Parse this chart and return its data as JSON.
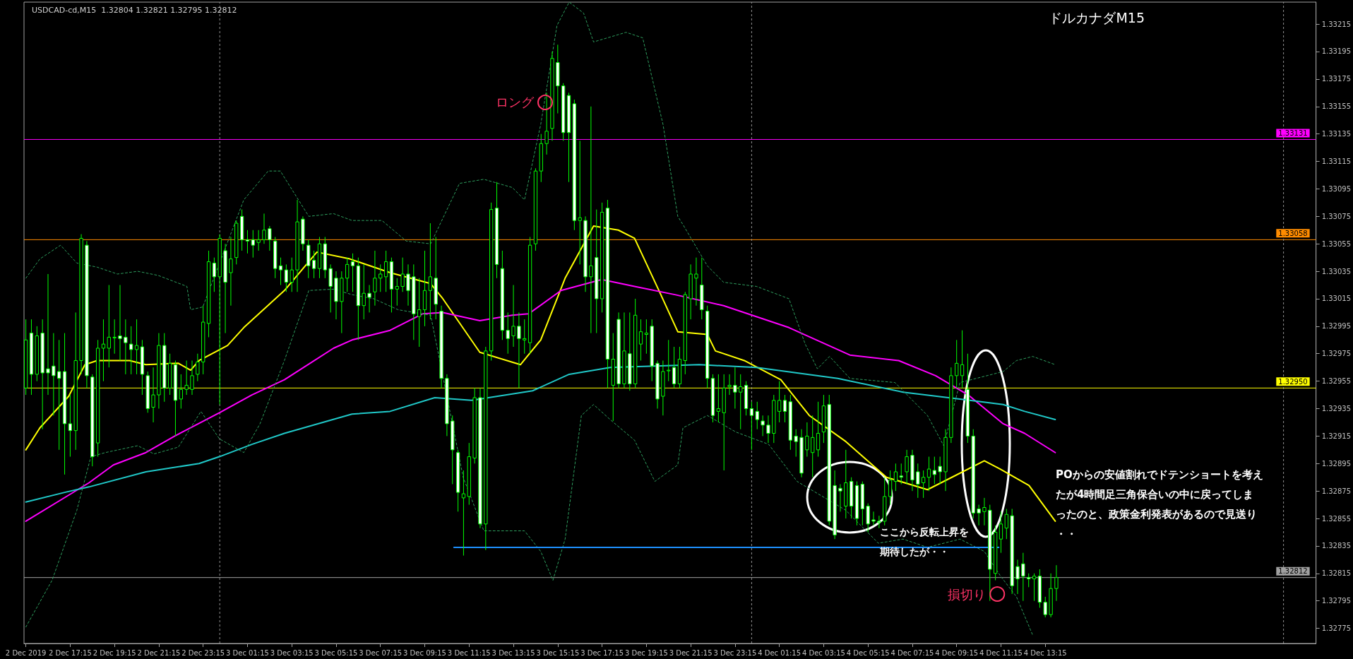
{
  "chart_data": {
    "type": "candlestick",
    "title": "ドルカナダM15",
    "subtitle": "USDCAD-cd,M15  1.32804 1.32821 1.32795 1.32812",
    "color": "#00ff00",
    "x": [
      "2019-12-02T15:15",
      "2019-12-02T15:30",
      "2019-12-02T15:45",
      "2019-12-02T16:00",
      "2019-12-02T16:15",
      "2019-12-02T16:30",
      "2019-12-02T16:45",
      "2019-12-02T17:00",
      "2019-12-02T17:15",
      "2019-12-02T17:30",
      "2019-12-02T17:45",
      "2019-12-02T18:00",
      "2019-12-02T18:15",
      "2019-12-02T18:30",
      "2019-12-02T18:45",
      "2019-12-02T19:00",
      "2019-12-02T19:15",
      "2019-12-02T19:30",
      "2019-12-02T19:45",
      "2019-12-02T20:00",
      "2019-12-02T20:15",
      "2019-12-02T20:30",
      "2019-12-02T20:45",
      "2019-12-02T21:00",
      "2019-12-02T21:15",
      "2019-12-02T21:30",
      "2019-12-02T21:45",
      "2019-12-02T22:00",
      "2019-12-02T22:15",
      "2019-12-02T22:30",
      "2019-12-02T22:45",
      "2019-12-02T23:00",
      "2019-12-02T23:15",
      "2019-12-02T23:30",
      "2019-12-02T23:45",
      "2019-12-03T00:00",
      "2019-12-03T00:15",
      "2019-12-03T00:30",
      "2019-12-03T00:45",
      "2019-12-03T01:00",
      "2019-12-03T01:15",
      "2019-12-03T01:30",
      "2019-12-03T01:45",
      "2019-12-03T02:00",
      "2019-12-03T02:15",
      "2019-12-03T02:30",
      "2019-12-03T02:45",
      "2019-12-03T03:00",
      "2019-12-03T03:15",
      "2019-12-03T03:30",
      "2019-12-03T03:45",
      "2019-12-03T04:00",
      "2019-12-03T04:15",
      "2019-12-03T04:30",
      "2019-12-03T04:45",
      "2019-12-03T05:00",
      "2019-12-03T05:15",
      "2019-12-03T05:30",
      "2019-12-03T05:45",
      "2019-12-03T06:00",
      "2019-12-03T06:15",
      "2019-12-03T06:30",
      "2019-12-03T06:45",
      "2019-12-03T07:00",
      "2019-12-03T07:15",
      "2019-12-03T07:30",
      "2019-12-03T07:45",
      "2019-12-03T08:00",
      "2019-12-03T08:15",
      "2019-12-03T08:30",
      "2019-12-03T08:45",
      "2019-12-03T09:00",
      "2019-12-03T09:15",
      "2019-12-03T09:30",
      "2019-12-03T09:45",
      "2019-12-03T10:00",
      "2019-12-03T10:15",
      "2019-12-03T10:30",
      "2019-12-03T10:45",
      "2019-12-03T11:00",
      "2019-12-03T11:15",
      "2019-12-03T11:30",
      "2019-12-03T11:45",
      "2019-12-03T12:00",
      "2019-12-03T12:15",
      "2019-12-03T12:30",
      "2019-12-03T12:45",
      "2019-12-03T13:00",
      "2019-12-03T13:15",
      "2019-12-03T13:30",
      "2019-12-03T13:45",
      "2019-12-03T14:00",
      "2019-12-03T14:15",
      "2019-12-03T14:30",
      "2019-12-03T14:45",
      "2019-12-03T15:00",
      "2019-12-03T15:15",
      "2019-12-03T15:30",
      "2019-12-03T15:45",
      "2019-12-03T16:00",
      "2019-12-03T16:15",
      "2019-12-03T16:30",
      "2019-12-03T16:45",
      "2019-12-03T17:00",
      "2019-12-03T17:15",
      "2019-12-03T17:30",
      "2019-12-03T17:45",
      "2019-12-03T18:00",
      "2019-12-03T18:15",
      "2019-12-03T18:30",
      "2019-12-03T18:45",
      "2019-12-03T19:00",
      "2019-12-03T19:15",
      "2019-12-03T19:30",
      "2019-12-03T19:45",
      "2019-12-03T20:00",
      "2019-12-03T20:15",
      "2019-12-03T20:30",
      "2019-12-03T20:45",
      "2019-12-03T21:00",
      "2019-12-03T21:15",
      "2019-12-03T21:30",
      "2019-12-03T21:45",
      "2019-12-03T22:00",
      "2019-12-03T22:15",
      "2019-12-03T22:30",
      "2019-12-03T22:45",
      "2019-12-03T23:00",
      "2019-12-03T23:15",
      "2019-12-03T23:30",
      "2019-12-03T23:45",
      "2019-12-04T00:00",
      "2019-12-04T00:15",
      "2019-12-04T00:30",
      "2019-12-04T00:45",
      "2019-12-04T01:00",
      "2019-12-04T01:15",
      "2019-12-04T01:30",
      "2019-12-04T01:45",
      "2019-12-04T02:00",
      "2019-12-04T02:15",
      "2019-12-04T02:30",
      "2019-12-04T02:45",
      "2019-12-04T03:00",
      "2019-12-04T03:15",
      "2019-12-04T03:30",
      "2019-12-04T03:45",
      "2019-12-04T04:00",
      "2019-12-04T04:15",
      "2019-12-04T04:30",
      "2019-12-04T04:45",
      "2019-12-04T05:00",
      "2019-12-04T05:15",
      "2019-12-04T05:30",
      "2019-12-04T05:45",
      "2019-12-04T06:00",
      "2019-12-04T06:15",
      "2019-12-04T06:30",
      "2019-12-04T06:45",
      "2019-12-04T07:00",
      "2019-12-04T07:15",
      "2019-12-04T07:30",
      "2019-12-04T07:45",
      "2019-12-04T08:00",
      "2019-12-04T08:15",
      "2019-12-04T08:30",
      "2019-12-04T08:45",
      "2019-12-04T09:00",
      "2019-12-04T09:15",
      "2019-12-04T09:30",
      "2019-12-04T09:45",
      "2019-12-04T10:00",
      "2019-12-04T10:15",
      "2019-12-04T10:30",
      "2019-12-04T10:45",
      "2019-12-04T11:00",
      "2019-12-04T11:15",
      "2019-12-04T11:30",
      "2019-12-04T11:45",
      "2019-12-04T12:00",
      "2019-12-04T12:15",
      "2019-12-04T12:30",
      "2019-12-04T12:45",
      "2019-12-04T13:00",
      "2019-12-04T13:15",
      "2019-12-04T13:30",
      "2019-12-04T13:45"
    ],
    "ohlc": [
      [
        1.3295,
        1.33,
        1.32945,
        1.32985
      ],
      [
        1.3299,
        1.33,
        1.32945,
        1.3296
      ],
      [
        1.3296,
        1.32995,
        1.32955,
        1.32988
      ],
      [
        1.3299,
        1.33,
        1.3292,
        1.32961
      ],
      [
        1.32964,
        1.33033,
        1.32945,
        1.32961
      ],
      [
        1.32966,
        1.3299,
        1.3293,
        1.32959
      ],
      [
        1.32962,
        1.32985,
        1.32905,
        1.32957
      ],
      [
        1.32962,
        1.3299,
        1.32887,
        1.32924
      ],
      [
        1.32924,
        1.32945,
        1.329,
        1.32919
      ],
      [
        1.32919,
        1.33005,
        1.32905,
        1.3297
      ],
      [
        1.3297,
        1.33062,
        1.3296,
        1.33059
      ],
      [
        1.33054,
        1.33057,
        1.3295,
        1.32959
      ],
      [
        1.32958,
        1.3296,
        1.32893,
        1.329
      ],
      [
        1.3291,
        1.32985,
        1.329,
        1.32979
      ],
      [
        1.32979,
        1.33,
        1.32955,
        1.32982
      ],
      [
        1.32979,
        1.33025,
        1.32965,
        1.32987
      ],
      [
        1.32987,
        1.33,
        1.32975,
        1.32987
      ],
      [
        1.32988,
        1.33025,
        1.3297,
        1.32986
      ],
      [
        1.32987,
        1.33,
        1.3296,
        1.32983
      ],
      [
        1.32982,
        1.32995,
        1.3296,
        1.32978
      ],
      [
        1.32978,
        1.33,
        1.3296,
        1.32981
      ],
      [
        1.3298,
        1.32985,
        1.32945,
        1.3296
      ],
      [
        1.32959,
        1.32962,
        1.32932,
        1.32935
      ],
      [
        1.32936,
        1.32965,
        1.32925,
        1.32945
      ],
      [
        1.32945,
        1.3299,
        1.32935,
        1.32981
      ],
      [
        1.32981,
        1.3299,
        1.3294,
        1.3295
      ],
      [
        1.3295,
        1.32975,
        1.32945,
        1.32968
      ],
      [
        1.32967,
        1.3297,
        1.32915,
        1.32941
      ],
      [
        1.32942,
        1.3296,
        1.32935,
        1.32949
      ],
      [
        1.32949,
        1.3297,
        1.32945,
        1.32952
      ],
      [
        1.32949,
        1.3297,
        1.32945,
        1.32959
      ],
      [
        1.3296,
        1.32975,
        1.32955,
        1.32969
      ],
      [
        1.32969,
        1.3301,
        1.3296,
        1.32998
      ],
      [
        1.32997,
        1.3305,
        1.32987,
        1.33042
      ],
      [
        1.33041,
        1.33045,
        1.3302,
        1.33031
      ],
      [
        1.33031,
        1.33062,
        1.32938,
        1.33059
      ],
      [
        1.3305,
        1.33055,
        1.3299,
        1.33027
      ],
      [
        1.33034,
        1.3306,
        1.3301,
        1.33044
      ],
      [
        1.33045,
        1.33072,
        1.3304,
        1.3307
      ],
      [
        1.33075,
        1.3308,
        1.3305,
        1.33058
      ],
      [
        1.33058,
        1.33065,
        1.33048,
        1.33057
      ],
      [
        1.33058,
        1.33065,
        1.33045,
        1.33054
      ],
      [
        1.33056,
        1.33065,
        1.3305,
        1.33058
      ],
      [
        1.33058,
        1.33077,
        1.33055,
        1.33065
      ],
      [
        1.33066,
        1.33068,
        1.3305,
        1.33058
      ],
      [
        1.33057,
        1.3306,
        1.3303,
        1.33037
      ],
      [
        1.33039,
        1.33045,
        1.33025,
        1.33036
      ],
      [
        1.33036,
        1.3304,
        1.3302,
        1.33027
      ],
      [
        1.33027,
        1.33045,
        1.3302,
        1.33036
      ],
      [
        1.33036,
        1.33087,
        1.3302,
        1.33071
      ],
      [
        1.33073,
        1.33075,
        1.3305,
        1.33055
      ],
      [
        1.33054,
        1.33058,
        1.3303,
        1.33039
      ],
      [
        1.33043,
        1.3305,
        1.3303,
        1.33037
      ],
      [
        1.33037,
        1.3306,
        1.3303,
        1.33055
      ],
      [
        1.33055,
        1.3306,
        1.3303,
        1.33036
      ],
      [
        1.33037,
        1.3304,
        1.33005,
        1.33024
      ],
      [
        1.3303,
        1.33035,
        1.33,
        1.33013
      ],
      [
        1.33013,
        1.33035,
        1.3299,
        1.3303
      ],
      [
        1.3303,
        1.33045,
        1.3302,
        1.3304
      ],
      [
        1.33042,
        1.33048,
        1.3302,
        1.33039
      ],
      [
        1.33039,
        1.33045,
        1.32985,
        1.3301
      ],
      [
        1.3301,
        1.3304,
        1.33,
        1.33019
      ],
      [
        1.33019,
        1.33025,
        1.33005,
        1.33016
      ],
      [
        1.3302,
        1.3305,
        1.3301,
        1.3303
      ],
      [
        1.3303,
        1.3304,
        1.3302,
        1.33033
      ],
      [
        1.33031,
        1.3305,
        1.3302,
        1.33042
      ],
      [
        1.33042,
        1.33045,
        1.33005,
        1.33022
      ],
      [
        1.33022,
        1.3303,
        1.3301,
        1.33024
      ],
      [
        1.33024,
        1.33045,
        1.3302,
        1.33033
      ],
      [
        1.33033,
        1.3304,
        1.3301,
        1.33021
      ],
      [
        1.33031,
        1.3304,
        1.32985,
        1.33004
      ],
      [
        1.33002,
        1.3303,
        1.3298,
        1.33007
      ],
      [
        1.33007,
        1.3305,
        1.32995,
        1.33021
      ],
      [
        1.33021,
        1.3307,
        1.33,
        1.33031
      ],
      [
        1.3303,
        1.3306,
        1.33,
        1.33011
      ],
      [
        1.33006,
        1.3301,
        1.3295,
        1.32957
      ],
      [
        1.32957,
        1.3296,
        1.32915,
        1.32924
      ],
      [
        1.32926,
        1.3293,
        1.3288,
        1.32905
      ],
      [
        1.32903,
        1.32905,
        1.3286,
        1.32874
      ],
      [
        1.3287,
        1.3289,
        1.32828,
        1.32873
      ],
      [
        1.32871,
        1.3291,
        1.32865,
        1.329
      ],
      [
        1.32899,
        1.3295,
        1.32895,
        1.32943
      ],
      [
        1.32943,
        1.3295,
        1.32848,
        1.32851
      ],
      [
        1.32851,
        1.3298,
        1.32832,
        1.32977
      ],
      [
        1.32977,
        1.33085,
        1.3297,
        1.3308
      ],
      [
        1.33081,
        1.331,
        1.3303,
        1.3304
      ],
      [
        1.33037,
        1.3305,
        1.32985,
        1.32992
      ],
      [
        1.32992,
        1.33005,
        1.32975,
        1.32986
      ],
      [
        1.32988,
        1.33025,
        1.3298,
        1.32995
      ],
      [
        1.32995,
        1.33005,
        1.3295,
        1.32986
      ],
      [
        1.32985,
        1.33,
        1.32975,
        1.32986
      ],
      [
        1.32983,
        1.3306,
        1.32975,
        1.33054
      ],
      [
        1.33055,
        1.3311,
        1.3305,
        1.33108
      ],
      [
        1.33108,
        1.33135,
        1.331,
        1.33128
      ],
      [
        1.33128,
        1.33165,
        1.3312,
        1.33137
      ],
      [
        1.33139,
        1.33195,
        1.3313,
        1.3319
      ],
      [
        1.33187,
        1.332,
        1.3315,
        1.3317
      ],
      [
        1.3317,
        1.33172,
        1.3313,
        1.33136
      ],
      [
        1.33163,
        1.33165,
        1.331,
        1.33136
      ],
      [
        1.33157,
        1.3316,
        1.33065,
        1.33072
      ],
      [
        1.33072,
        1.3313,
        1.3304,
        1.33074
      ],
      [
        1.33072,
        1.33075,
        1.3302,
        1.33031
      ],
      [
        1.33031,
        1.33155,
        1.3299,
        1.33039
      ],
      [
        1.33045,
        1.3308,
        1.3299,
        1.33015
      ],
      [
        1.33015,
        1.33085,
        1.33005,
        1.33078
      ],
      [
        1.33081,
        1.33087,
        1.3295,
        1.32971
      ],
      [
        1.32952,
        1.3299,
        1.32926,
        1.32971
      ],
      [
        1.33,
        1.33005,
        1.3295,
        1.32953
      ],
      [
        1.32953,
        1.33005,
        1.3295,
        1.32977
      ],
      [
        1.32975,
        1.33005,
        1.32948,
        1.32953
      ],
      [
        1.32953,
        1.33015,
        1.3295,
        1.33003
      ],
      [
        1.32982,
        1.33,
        1.3297,
        1.32991
      ],
      [
        1.32989,
        1.33,
        1.32975,
        1.3299
      ],
      [
        1.32995,
        1.33,
        1.32955,
        1.32966
      ],
      [
        1.32968,
        1.3297,
        1.32935,
        1.32942
      ],
      [
        1.32944,
        1.3297,
        1.3293,
        1.32962
      ],
      [
        1.32963,
        1.32985,
        1.32955,
        1.32963
      ],
      [
        1.32965,
        1.3298,
        1.3295,
        1.32953
      ],
      [
        1.32953,
        1.3298,
        1.3295,
        1.32971
      ],
      [
        1.3297,
        1.3302,
        1.3296,
        1.33018
      ],
      [
        1.33015,
        1.3304,
        1.33,
        1.33033
      ],
      [
        1.3303,
        1.33045,
        1.3301,
        1.33033
      ],
      [
        1.33025,
        1.33045,
        1.33,
        1.33007
      ],
      [
        1.33006,
        1.3301,
        1.3295,
        1.32957
      ],
      [
        1.32957,
        1.3296,
        1.32925,
        1.3293
      ],
      [
        1.32933,
        1.3296,
        1.32925,
        1.32935
      ],
      [
        1.32932,
        1.3296,
        1.3289,
        1.3295
      ],
      [
        1.32951,
        1.3296,
        1.32945,
        1.32952
      ],
      [
        1.32952,
        1.32965,
        1.32935,
        1.32947
      ],
      [
        1.32947,
        1.3296,
        1.3292,
        1.32951
      ],
      [
        1.32952,
        1.32955,
        1.3293,
        1.32935
      ],
      [
        1.32935,
        1.3294,
        1.32905,
        1.3293
      ],
      [
        1.32933,
        1.3294,
        1.3292,
        1.32927
      ],
      [
        1.32926,
        1.3293,
        1.32915,
        1.32923
      ],
      [
        1.32923,
        1.3293,
        1.3291,
        1.32917
      ],
      [
        1.32917,
        1.32945,
        1.3291,
        1.32941
      ],
      [
        1.32933,
        1.32955,
        1.32925,
        1.32941
      ],
      [
        1.32941,
        1.32945,
        1.32925,
        1.32933
      ],
      [
        1.3294,
        1.32945,
        1.32905,
        1.32912
      ],
      [
        1.32915,
        1.3292,
        1.329,
        1.32911
      ],
      [
        1.32914,
        1.3292,
        1.32885,
        1.32888
      ],
      [
        1.32905,
        1.32925,
        1.329,
        1.32915
      ],
      [
        1.32903,
        1.3293,
        1.32885,
        1.32914
      ],
      [
        1.32905,
        1.3294,
        1.329,
        1.32917
      ],
      [
        1.32918,
        1.32945,
        1.3291,
        1.32937
      ],
      [
        1.32938,
        1.32945,
        1.3285,
        1.32853
      ],
      [
        1.32879,
        1.3289,
        1.3284,
        1.32843
      ],
      [
        1.32877,
        1.3288,
        1.3286,
        1.32875
      ],
      [
        1.32864,
        1.32905,
        1.32855,
        1.32881
      ],
      [
        1.32882,
        1.32885,
        1.32855,
        1.32864
      ],
      [
        1.32879,
        1.32882,
        1.3285,
        1.32855
      ],
      [
        1.3288,
        1.32882,
        1.3285,
        1.32862
      ],
      [
        1.32864,
        1.32866,
        1.32845,
        1.32851
      ],
      [
        1.32854,
        1.3286,
        1.3285,
        1.32853
      ],
      [
        1.32853,
        1.32857,
        1.32848,
        1.32852
      ],
      [
        1.32853,
        1.32885,
        1.3285,
        1.32871
      ],
      [
        1.32871,
        1.3289,
        1.32865,
        1.32883
      ],
      [
        1.32882,
        1.32895,
        1.32875,
        1.32889
      ],
      [
        1.32886,
        1.32895,
        1.3288,
        1.32885
      ],
      [
        1.32889,
        1.32905,
        1.3288,
        1.329
      ],
      [
        1.32901,
        1.32905,
        1.32875,
        1.32883
      ],
      [
        1.32889,
        1.32895,
        1.3287,
        1.3288
      ],
      [
        1.32881,
        1.3289,
        1.3287,
        1.32885
      ],
      [
        1.32885,
        1.329,
        1.32875,
        1.32891
      ],
      [
        1.3289,
        1.329,
        1.3288,
        1.32887
      ],
      [
        1.32893,
        1.329,
        1.3288,
        1.32889
      ],
      [
        1.32889,
        1.3292,
        1.32875,
        1.32914
      ],
      [
        1.32914,
        1.32965,
        1.3291,
        1.32959
      ],
      [
        1.32959,
        1.32985,
        1.3295,
        1.32968
      ],
      [
        1.32959,
        1.32992,
        1.3295,
        1.32967
      ],
      [
        1.32949,
        1.32975,
        1.3291,
        1.32915
      ],
      [
        1.32915,
        1.3292,
        1.32855,
        1.32859
      ],
      [
        1.32862,
        1.32865,
        1.3285,
        1.32859
      ],
      [
        1.3286,
        1.3287,
        1.3285,
        1.32863
      ],
      [
        1.32861,
        1.32865,
        1.32795,
        1.32818
      ],
      [
        1.32815,
        1.3285,
        1.3281,
        1.32845
      ],
      [
        1.3284,
        1.3286,
        1.3283,
        1.32851
      ],
      [
        1.32848,
        1.32862,
        1.3284,
        1.32858
      ],
      [
        1.32857,
        1.32862,
        1.328,
        1.32806
      ],
      [
        1.3282,
        1.32825,
        1.328,
        1.32811
      ],
      [
        1.32822,
        1.3283,
        1.32795,
        1.32813
      ],
      [
        1.32812,
        1.32815,
        1.32805,
        1.32811
      ],
      [
        1.32811,
        1.32815,
        1.32795,
        1.32813
      ],
      [
        1.32813,
        1.32818,
        1.3279,
        1.32794
      ],
      [
        1.32794,
        1.32798,
        1.32783,
        1.32785
      ],
      [
        1.32785,
        1.32815,
        1.32783,
        1.32804
      ],
      [
        1.32804,
        1.32821,
        1.32795,
        1.32812
      ]
    ],
    "series": [
      {
        "type": "line",
        "color": "#ffff00",
        "line_style": "solid",
        "x": [
          "2019-12-02T15:15",
          "2019-12-02T15:53",
          "2019-12-02T17:11",
          "2019-12-02T17:55",
          "2019-12-02T18:28",
          "2019-12-02T19:56",
          "2019-12-02T20:40",
          "2019-12-02T22:08",
          "2019-12-02T22:41",
          "2019-12-02T23:04",
          "2019-12-03T00:21",
          "2019-12-03T01:05",
          "2019-12-03T02:55",
          "2019-12-03T04:23",
          "2019-12-03T05:52",
          "2019-12-03T07:41",
          "2019-12-03T09:31",
          "2019-12-03T10:04",
          "2019-12-03T11:44",
          "2019-12-03T13:34",
          "2019-12-03T14:29",
          "2019-12-03T15:35",
          "2019-12-03T16:52",
          "2019-12-03T17:59",
          "2019-12-03T18:43",
          "2019-12-03T19:49",
          "2019-12-03T20:40",
          "2019-12-03T22:00",
          "2019-12-03T22:22",
          "2019-12-03T23:40",
          "2019-12-04T01:19",
          "2019-12-04T02:36",
          "2019-12-04T04:15",
          "2019-12-04T06:05",
          "2019-12-04T07:56",
          "2019-12-04T09:02",
          "2019-12-04T10:30",
          "2019-12-04T11:13",
          "2019-12-04T12:31",
          "2019-12-04T13:42"
        ],
        "values": [
          1.32905,
          1.32921,
          1.32944,
          1.32967,
          1.3297,
          1.3297,
          1.32967,
          1.32968,
          1.32963,
          1.3297,
          1.32981,
          1.32994,
          1.33021,
          1.33049,
          1.33044,
          1.33034,
          1.33026,
          1.33015,
          1.32976,
          1.32967,
          1.32985,
          1.3303,
          1.33068,
          1.33065,
          1.33059,
          1.33021,
          1.32991,
          1.32989,
          1.32977,
          1.3297,
          1.32956,
          1.3293,
          1.32911,
          1.32885,
          1.32876,
          1.32885,
          1.32897,
          1.32891,
          1.32879,
          1.32853
        ]
      },
      {
        "type": "line",
        "color": "#ff00ff",
        "line_style": "solid",
        "x": [
          "2019-12-02T15:15",
          "2019-12-02T17:11",
          "2019-12-02T18:06",
          "2019-12-02T19:12",
          "2019-12-02T20:40",
          "2019-12-02T21:58",
          "2019-12-02T23:59",
          "2019-12-03T01:27",
          "2019-12-03T02:55",
          "2019-12-03T05:08",
          "2019-12-03T05:58",
          "2019-12-03T07:41",
          "2019-12-03T09:09",
          "2019-12-03T10:04",
          "2019-12-03T11:44",
          "2019-12-03T13:12",
          "2019-12-03T13:56",
          "2019-12-03T15:24",
          "2019-12-03T17:14",
          "2019-12-03T18:43",
          "2019-12-03T20:32",
          "2019-12-03T22:44",
          "2019-12-04T01:41",
          "2019-12-04T04:26",
          "2019-12-04T06:38",
          "2019-12-04T08:18",
          "2019-12-04T09:46",
          "2019-12-04T11:21",
          "2019-12-04T12:19",
          "2019-12-04T13:42"
        ],
        "values": [
          1.32853,
          1.32872,
          1.32881,
          1.32894,
          1.32903,
          1.32915,
          1.32932,
          1.32945,
          1.32956,
          1.32979,
          1.32985,
          1.32992,
          1.33004,
          1.33005,
          1.32999,
          1.33003,
          1.33004,
          1.33021,
          1.33029,
          1.33024,
          1.33018,
          1.3301,
          1.32994,
          1.32974,
          1.3297,
          1.32959,
          1.32945,
          1.32924,
          1.32917,
          1.32903
        ]
      },
      {
        "type": "line",
        "color": "#20c8c8",
        "line_style": "solid",
        "x": [
          "2019-12-02T15:15",
          "2019-12-02T17:00",
          "2019-12-02T18:06",
          "2019-12-02T20:40",
          "2019-12-02T23:04",
          "2019-12-02T23:59",
          "2019-12-03T01:27",
          "2019-12-03T02:55",
          "2019-12-03T05:58",
          "2019-12-03T07:41",
          "2019-12-03T09:42",
          "2019-12-03T11:22",
          "2019-12-03T14:07",
          "2019-12-03T15:46",
          "2019-12-03T17:37",
          "2019-12-03T21:38",
          "2019-12-04T00:13",
          "2019-12-04T03:53",
          "2019-12-04T06:50",
          "2019-12-04T09:24",
          "2019-12-04T11:21",
          "2019-12-04T12:19",
          "2019-12-04T13:42"
        ],
        "values": [
          1.32867,
          1.32874,
          1.32878,
          1.32889,
          1.32895,
          1.329,
          1.32909,
          1.32917,
          1.32931,
          1.32933,
          1.32943,
          1.32941,
          1.32948,
          1.3296,
          1.32965,
          1.32967,
          1.32965,
          1.32957,
          1.32947,
          1.32942,
          1.32938,
          1.32933,
          1.32927
        ]
      },
      {
        "type": "line",
        "color": "#2e9e5e",
        "line_style": "dashed",
        "x": [
          "2019-12-02T15:15",
          "2019-12-02T15:53",
          "2019-12-02T16:49",
          "2019-12-02T17:33",
          "2019-12-02T18:28",
          "2019-12-02T19:23",
          "2019-12-02T20:18",
          "2019-12-02T21:13",
          "2019-12-02T22:31",
          "2019-12-02T22:41",
          "2019-12-02T23:14",
          "2019-12-02T23:59",
          "2019-12-03T01:05",
          "2019-12-03T02:11",
          "2019-12-03T02:44",
          "2019-12-03T04:01",
          "2019-12-03T05:08",
          "2019-12-03T05:58",
          "2019-12-03T07:19",
          "2019-12-03T08:25",
          "2019-12-03T09:31",
          "2019-12-03T10:49",
          "2019-12-03T11:55",
          "2019-12-03T13:12",
          "2019-12-03T13:45",
          "2019-12-03T14:29",
          "2019-12-03T15:13",
          "2019-12-03T15:46",
          "2019-12-03T16:25",
          "2019-12-03T16:52",
          "2019-12-03T18:20",
          "2019-12-03T19:05",
          "2019-12-03T20:00",
          "2019-12-03T20:40",
          "2019-12-03T20:54",
          "2019-12-03T22:00",
          "2019-12-03T22:44",
          "2019-12-04T00:13",
          "2019-12-04T01:41",
          "2019-12-04T02:25",
          "2019-12-04T02:58",
          "2019-12-04T03:31",
          "2019-12-04T04:26",
          "2019-12-04T06:28",
          "2019-12-04T07:56",
          "2019-12-04T08:40",
          "2019-12-04T09:24",
          "2019-12-04T11:21",
          "2019-12-04T11:57",
          "2019-12-04T12:41",
          "2019-12-04T13:42"
        ],
        "values": [
          1.3303,
          1.33044,
          1.33054,
          1.33041,
          1.33038,
          1.33033,
          1.33035,
          1.33032,
          1.33024,
          1.33007,
          1.33009,
          null,
          1.33087,
          1.33108,
          1.33108,
          1.33075,
          1.33077,
          1.33072,
          1.33072,
          1.33057,
          1.33055,
          1.33099,
          1.33102,
          1.33096,
          1.33087,
          1.33142,
          1.33214,
          1.33231,
          1.33223,
          1.33202,
          1.33209,
          1.33205,
          1.33142,
          1.33075,
          1.33069,
          1.33039,
          1.33027,
          1.33024,
          1.33015,
          1.32982,
          1.32964,
          1.32973,
          1.32957,
          1.32954,
          1.3293,
          1.32908,
          1.32954,
          1.32962,
          1.3297,
          1.32973,
          1.32967
        ]
      },
      {
        "type": "line",
        "color": "#2e9e5e",
        "line_style": "dashed",
        "x": [
          "2019-12-02T15:15",
          "2019-12-02T16:26",
          "2019-12-02T17:33",
          "2019-12-02T18:11",
          "2019-12-02T18:50",
          "2019-12-02T20:18",
          "2019-12-02T21:02",
          "2019-12-02T22:08",
          "2019-12-02T22:41",
          "2019-12-02T23:09",
          "2019-12-02T23:59",
          "2019-12-03T01:05",
          "2019-12-03T01:49",
          "2019-12-03T02:55",
          "2019-12-03T04:01",
          "2019-12-03T05:08",
          "2019-12-03T05:58",
          "2019-12-03T06:57",
          "2019-12-03T08:03",
          "2019-12-03T09:31",
          "2019-12-03T10:16",
          "2019-12-03T10:59",
          "2019-12-03T11:55",
          "2019-12-03T13:45",
          "2019-12-03T14:29",
          "2019-12-03T15:02",
          "2019-12-03T15:35",
          "2019-12-03T16:19",
          "2019-12-03T16:52",
          "2019-12-03T17:37",
          "2019-12-03T18:43",
          "2019-12-03T19:38",
          "2019-12-03T20:40",
          "2019-12-03T20:54",
          "2019-12-03T22:00",
          "2019-12-03T23:17",
          "2019-12-04T00:46",
          "2019-12-04T02:03",
          "2019-12-04T04:15",
          "2019-12-04T05:43",
          "2019-12-04T06:50",
          "2019-12-04T07:56",
          "2019-12-04T09:24",
          "2019-12-04T10:30",
          "2019-12-04T11:14",
          "2019-12-04T11:57",
          "2019-12-04T12:41"
        ],
        "values": [
          1.32776,
          1.3281,
          1.32861,
          1.329,
          1.32903,
          1.32908,
          1.32902,
          1.32907,
          1.32921,
          1.32933,
          1.32913,
          1.32903,
          1.32924,
          1.3297,
          1.33021,
          1.33022,
          1.33018,
          1.33015,
          1.33007,
          1.33003,
          null,
          1.32885,
          1.32846,
          1.32846,
          1.32831,
          1.3281,
          1.3284,
          1.3293,
          1.32938,
          1.32927,
          1.32912,
          1.32882,
          1.32894,
          1.32921,
          1.3293,
          1.32918,
          1.32909,
          1.32882,
          1.32861,
          1.32837,
          1.3284,
          1.32834,
          1.3284,
          1.32831,
          1.32813,
          1.32798,
          1.3277
        ]
      },
      {
        "type": "line",
        "color": "#1e90ff",
        "line_style": "solid",
        "x": [
          "2019-12-03T10:34",
          "2019-12-04T11:09"
        ],
        "values": [
          1.32834,
          1.32834
        ]
      }
    ],
    "ref_lines": [
      {
        "axis": "y",
        "value": 1.33131,
        "label": "1.33131",
        "color": "#ff00ff",
        "line_style": "solid"
      },
      {
        "axis": "y",
        "value": 1.33058,
        "label": "1.33058",
        "color": "#ff8c00",
        "line_style": "solid"
      },
      {
        "axis": "y",
        "value": 1.3295,
        "label": "1.32950",
        "color": "#ffff00",
        "line_style": "solid"
      },
      {
        "axis": "y",
        "value": 1.32812,
        "label": "1.32812",
        "color": "#a0a0a0",
        "line_style": "solid"
      },
      {
        "axis": "x",
        "value": "2019-12-03T00:00",
        "color": "#909090",
        "line_style": "dashed"
      },
      {
        "axis": "x",
        "value": "2019-12-04T00:00",
        "color": "#909090",
        "line_style": "dashed"
      },
      {
        "axis": "x",
        "value": "2019-12-05T00:00",
        "color": "#909090",
        "line_style": "dashed"
      }
    ],
    "annotations": [
      {
        "text": "ロング",
        "x": "2019-12-03T14:41",
        "y": 1.33158
      },
      {
        "text": "損切り",
        "x": "2019-12-04T11:05",
        "y": 1.328
      },
      {
        "text": "ここから反転上昇を期待したが・・",
        "x": "2019-12-04T05:55",
        "y": 1.32834
      },
      "POからの安値割れでドテンショートを考えたが4時間足三角保合いの中に戻ってしまったのと、政策金利発表があるので見送り・・"
    ],
    "xlim": [
      "2019-12-02T15:10",
      "2019-12-05T01:28"
    ],
    "ylim": [
      1.32764,
      1.33231
    ],
    "xticks": [
      {
        "value": "2019-12-02T15:15",
        "label": "2 Dec 2019"
      },
      {
        "value": "2019-12-02T17:15",
        "label": "2 Dec 17:15"
      },
      {
        "value": "2019-12-02T19:15",
        "label": "2 Dec 19:15"
      },
      {
        "value": "2019-12-02T21:15",
        "label": "2 Dec 21:15"
      },
      {
        "value": "2019-12-02T23:15",
        "label": "2 Dec 23:15"
      },
      {
        "value": "2019-12-03T01:15",
        "label": "3 Dec 01:15"
      },
      {
        "value": "2019-12-03T03:15",
        "label": "3 Dec 03:15"
      },
      {
        "value": "2019-12-03T05:15",
        "label": "3 Dec 05:15"
      },
      {
        "value": "2019-12-03T07:15",
        "label": "3 Dec 07:15"
      },
      {
        "value": "2019-12-03T09:15",
        "label": "3 Dec 09:15"
      },
      {
        "value": "2019-12-03T11:15",
        "label": "3 Dec 11:15"
      },
      {
        "value": "2019-12-03T13:15",
        "label": "3 Dec 13:15"
      },
      {
        "value": "2019-12-03T15:15",
        "label": "3 Dec 15:15"
      },
      {
        "value": "2019-12-03T17:15",
        "label": "3 Dec 17:15"
      },
      {
        "value": "2019-12-03T19:15",
        "label": "3 Dec 19:15"
      },
      {
        "value": "2019-12-03T21:15",
        "label": "3 Dec 21:15"
      },
      {
        "value": "2019-12-03T23:15",
        "label": "3 Dec 23:15"
      },
      {
        "value": "2019-12-04T01:15",
        "label": "4 Dec 01:15"
      },
      {
        "value": "2019-12-04T03:15",
        "label": "4 Dec 03:15"
      },
      {
        "value": "2019-12-04T05:15",
        "label": "4 Dec 05:15"
      },
      {
        "value": "2019-12-04T07:15",
        "label": "4 Dec 07:15"
      },
      {
        "value": "2019-12-04T09:15",
        "label": "4 Dec 09:15"
      },
      {
        "value": "2019-12-04T11:15",
        "label": "4 Dec 11:15"
      },
      {
        "value": "2019-12-04T13:15",
        "label": "4 Dec 13:15"
      }
    ],
    "yticks": [
      1.32775,
      1.32795,
      1.32815,
      1.32835,
      1.32855,
      1.32875,
      1.32895,
      1.32915,
      1.32935,
      1.32955,
      1.32975,
      1.32995,
      1.33015,
      1.33035,
      1.33055,
      1.33075,
      1.33095,
      1.33115,
      1.33135,
      1.33155,
      1.33175,
      1.33195,
      1.33215
    ]
  }
}
